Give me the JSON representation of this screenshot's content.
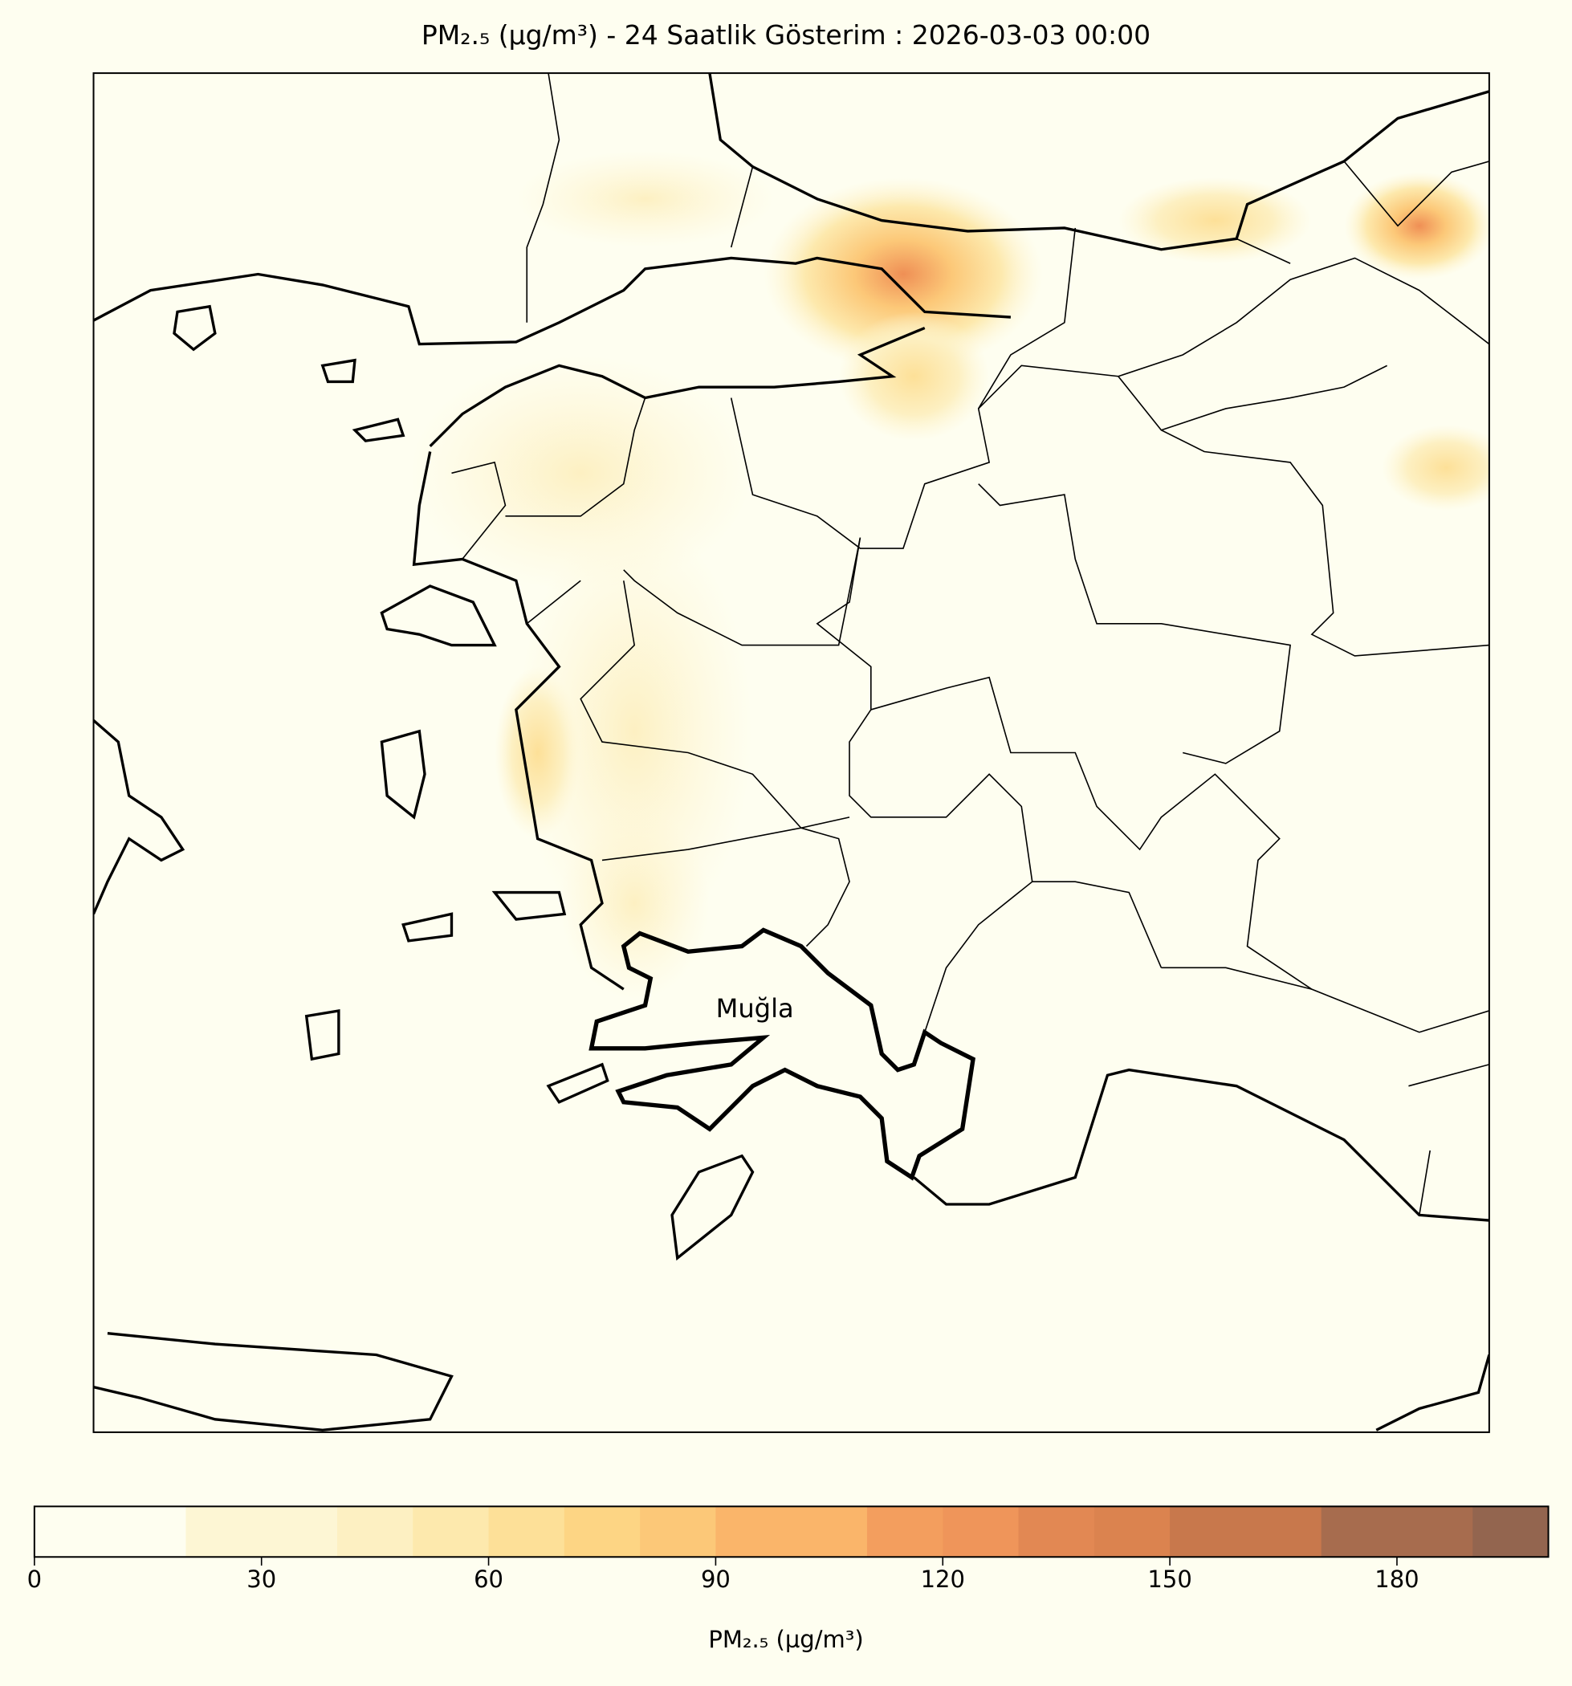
{
  "title": "PM₂.₅ (µg/m³) - 24 Saatlik Gösterim : 2026-03-03 00:00",
  "map": {
    "highlighted_region_label": "Muğla",
    "background_color": "#fefef0"
  },
  "colorbar": {
    "label": "PM₂.₅ (µg/m³)",
    "levels": [
      0,
      20,
      40,
      50,
      60,
      70,
      80,
      90,
      110,
      120,
      130,
      140,
      150,
      170,
      190,
      200
    ],
    "colors": [
      "#fefef0",
      "#fdf6d4",
      "#fdf0c2",
      "#fde9ad",
      "#fde098",
      "#fdd584",
      "#fcc878",
      "#fab56a",
      "#f39e5e",
      "#ef955a",
      "#e28853",
      "#db834f",
      "#c8784c",
      "#a76c4e",
      "#93654f"
    ],
    "ticks": [
      "0",
      "30",
      "60",
      "90",
      "120",
      "150",
      "180"
    ],
    "tick_values": [
      0,
      30,
      60,
      90,
      120,
      150,
      180
    ]
  }
}
